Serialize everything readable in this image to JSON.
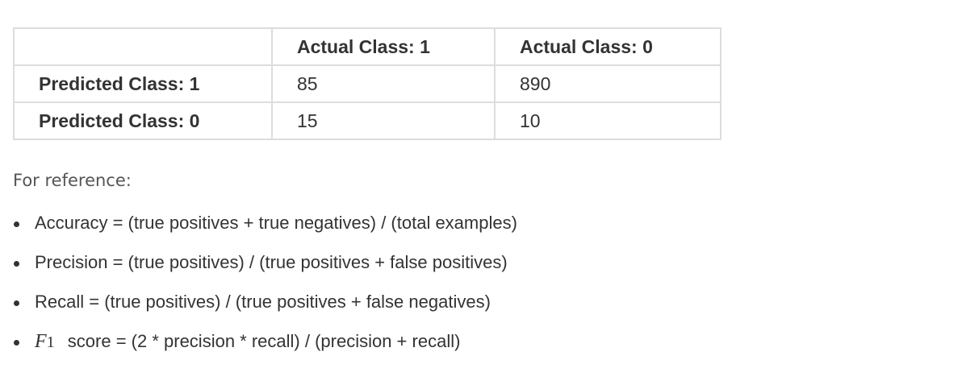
{
  "table": {
    "headers": [
      "",
      "Actual Class: 1",
      "Actual Class: 0"
    ],
    "rows": [
      {
        "label": "Predicted Class: 1",
        "cells": [
          "85",
          "890"
        ]
      },
      {
        "label": "Predicted Class: 0",
        "cells": [
          "15",
          "10"
        ]
      }
    ]
  },
  "reference": {
    "intro": "For reference:",
    "items": [
      {
        "text": "Accuracy = (true positives + true negatives) / (total examples)"
      },
      {
        "text": "Precision = (true positives) / (true positives + false positives)"
      },
      {
        "text": "Recall = (true positives) / (true positives + false negatives)"
      },
      {
        "math_symbol": "F",
        "math_sub": "1",
        "text": "score = (2 * precision * recall) / (precision + recall)"
      }
    ]
  }
}
